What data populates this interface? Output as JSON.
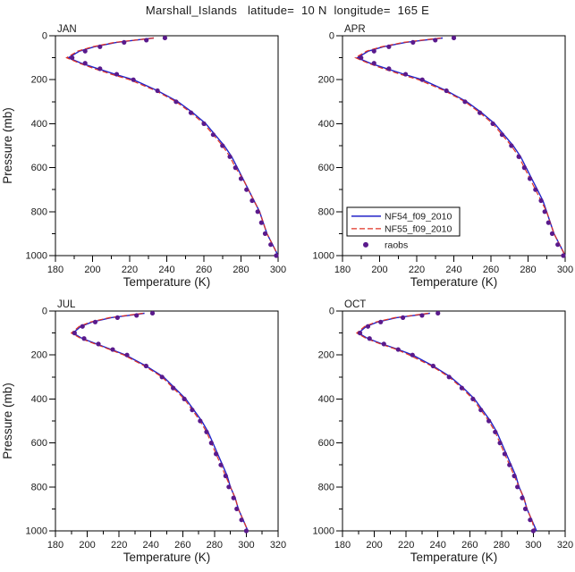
{
  "chart_data": {
    "type": "line",
    "title": "Marshall_Islands   latitude=  10 N  longitude=  165 E",
    "xlabel": "Temperature (K)",
    "ylabel": "Pressure (mb)",
    "grid": false,
    "y_axis": {
      "min": 0,
      "max": 1000,
      "major_tick_step": 200,
      "minor_tick_step": 100,
      "inverted": true
    },
    "legend": {
      "position": "inside APR panel, lower-left",
      "entries": [
        "NF54_f09_2010",
        "NF55_f09_2010",
        "raobs"
      ]
    },
    "series_meta": [
      {
        "key": "nf54",
        "label": "NF54_f09_2010",
        "color": "#2323c8",
        "style": "solid"
      },
      {
        "key": "nf55",
        "label": "NF55_f09_2010",
        "color": "#e03224",
        "style": "dashed"
      },
      {
        "key": "raobs",
        "label": "raobs",
        "color": "#5a1a8c",
        "style": "dots"
      }
    ],
    "pressure_levels": [
      10,
      20,
      30,
      50,
      70,
      100,
      125,
      150,
      175,
      200,
      250,
      300,
      350,
      400,
      450,
      500,
      550,
      600,
      650,
      700,
      750,
      800,
      850,
      900,
      950,
      1000
    ],
    "panels": [
      {
        "label": "JAN",
        "x_min": 180,
        "x_max": 300,
        "x_major_tick_step": 20,
        "x_minor_tick_step": 10,
        "show_ylabel": true,
        "show_legend": false,
        "series": {
          "nf54": [
            233,
            223,
            213,
            201,
            193,
            187,
            194,
            203,
            212,
            222,
            235,
            246,
            254,
            261,
            266,
            271,
            275,
            278,
            281,
            284,
            287,
            290,
            292,
            294,
            297,
            300
          ],
          "nf55": [
            233,
            223,
            212,
            200,
            192,
            186,
            193,
            201,
            210,
            220,
            234,
            245,
            253,
            260,
            265,
            270,
            274,
            277,
            281,
            284,
            287,
            290,
            292,
            294,
            297,
            300
          ],
          "raobs": [
            239,
            229,
            217,
            204,
            196,
            189,
            196,
            204,
            213,
            222,
            235,
            245,
            253,
            260,
            265,
            270,
            274,
            277,
            280,
            283,
            286,
            289,
            291,
            293,
            296,
            299
          ]
        }
      },
      {
        "label": "APR",
        "x_min": 180,
        "x_max": 300,
        "x_major_tick_step": 20,
        "x_minor_tick_step": 10,
        "show_ylabel": false,
        "show_legend": true,
        "series": {
          "nf54": [
            234,
            224,
            214,
            202,
            194,
            188,
            195,
            204,
            213,
            223,
            236,
            247,
            255,
            262,
            267,
            272,
            276,
            279,
            282,
            285,
            288,
            290,
            292,
            294,
            297,
            300
          ],
          "nf55": [
            233,
            223,
            213,
            201,
            193,
            187,
            194,
            202,
            211,
            221,
            235,
            246,
            254,
            261,
            266,
            271,
            275,
            278,
            281,
            284,
            287,
            290,
            292,
            294,
            297,
            300
          ],
          "raobs": [
            240,
            230,
            218,
            205,
            197,
            190,
            197,
            205,
            214,
            223,
            236,
            246,
            254,
            261,
            266,
            271,
            275,
            278,
            281,
            284,
            287,
            289,
            291,
            293,
            296,
            299
          ]
        }
      },
      {
        "label": "JUL",
        "x_min": 180,
        "x_max": 320,
        "x_major_tick_step": 20,
        "x_minor_tick_step": 10,
        "show_ylabel": true,
        "show_legend": false,
        "series": {
          "nf54": [
            236,
            226,
            215,
            203,
            196,
            191,
            197,
            206,
            215,
            224,
            237,
            248,
            255,
            262,
            267,
            272,
            276,
            279,
            282,
            285,
            288,
            290,
            293,
            295,
            298,
            301
          ],
          "nf55": [
            235,
            225,
            214,
            202,
            195,
            190,
            196,
            205,
            214,
            223,
            236,
            247,
            254,
            261,
            266,
            271,
            275,
            278,
            281,
            284,
            287,
            290,
            293,
            295,
            298,
            301
          ],
          "raobs": [
            241,
            231,
            219,
            205,
            197,
            192,
            198,
            207,
            216,
            225,
            237,
            247,
            254,
            261,
            266,
            271,
            275,
            278,
            281,
            284,
            287,
            289,
            292,
            294,
            297,
            300
          ]
        }
      },
      {
        "label": "OCT",
        "x_min": 180,
        "x_max": 320,
        "x_major_tick_step": 20,
        "x_minor_tick_step": 10,
        "show_ylabel": false,
        "show_legend": false,
        "series": {
          "nf54": [
            235,
            225,
            214,
            202,
            195,
            190,
            196,
            205,
            215,
            224,
            237,
            248,
            256,
            263,
            268,
            273,
            277,
            280,
            283,
            286,
            289,
            291,
            294,
            296,
            299,
            302
          ],
          "nf55": [
            234,
            224,
            213,
            201,
            194,
            189,
            195,
            204,
            214,
            222,
            236,
            247,
            255,
            262,
            267,
            272,
            276,
            279,
            282,
            285,
            288,
            291,
            294,
            296,
            299,
            301
          ],
          "raobs": [
            240,
            230,
            218,
            204,
            196,
            191,
            197,
            206,
            215,
            224,
            237,
            247,
            255,
            262,
            267,
            272,
            276,
            279,
            282,
            285,
            288,
            290,
            293,
            295,
            298,
            300
          ]
        }
      }
    ]
  }
}
